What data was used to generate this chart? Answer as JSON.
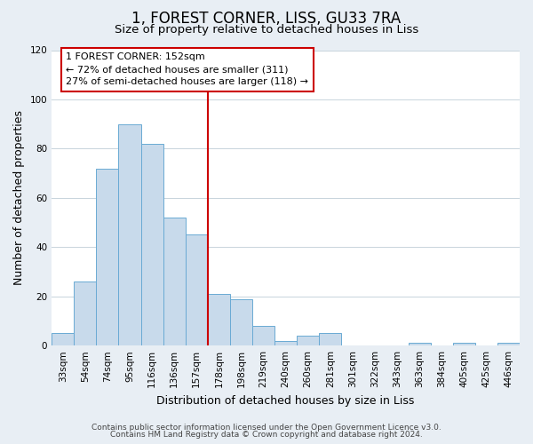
{
  "title": "1, FOREST CORNER, LISS, GU33 7RA",
  "subtitle": "Size of property relative to detached houses in Liss",
  "xlabel": "Distribution of detached houses by size in Liss",
  "ylabel": "Number of detached properties",
  "bar_labels": [
    "33sqm",
    "54sqm",
    "74sqm",
    "95sqm",
    "116sqm",
    "136sqm",
    "157sqm",
    "178sqm",
    "198sqm",
    "219sqm",
    "240sqm",
    "260sqm",
    "281sqm",
    "301sqm",
    "322sqm",
    "343sqm",
    "363sqm",
    "384sqm",
    "405sqm",
    "425sqm",
    "446sqm"
  ],
  "bar_heights": [
    5,
    26,
    72,
    90,
    82,
    52,
    45,
    21,
    19,
    8,
    2,
    4,
    5,
    0,
    0,
    0,
    1,
    0,
    1,
    0,
    1
  ],
  "bar_color": "#c8daeb",
  "bar_edge_color": "#6aaad4",
  "ylim": [
    0,
    120
  ],
  "yticks": [
    0,
    20,
    40,
    60,
    80,
    100,
    120
  ],
  "vline_color": "#cc0000",
  "annotation_title": "1 FOREST CORNER: 152sqm",
  "annotation_line1": "← 72% of detached houses are smaller (311)",
  "annotation_line2": "27% of semi-detached houses are larger (118) →",
  "annotation_box_color": "#ffffff",
  "annotation_box_edge": "#cc0000",
  "footer1": "Contains HM Land Registry data © Crown copyright and database right 2024.",
  "footer2": "Contains public sector information licensed under the Open Government Licence v3.0.",
  "background_color": "#e8eef4",
  "plot_bg_color": "#ffffff",
  "title_fontsize": 12,
  "subtitle_fontsize": 9.5,
  "axis_label_fontsize": 9,
  "tick_fontsize": 7.5,
  "annotation_fontsize": 8,
  "footer_fontsize": 6.5
}
